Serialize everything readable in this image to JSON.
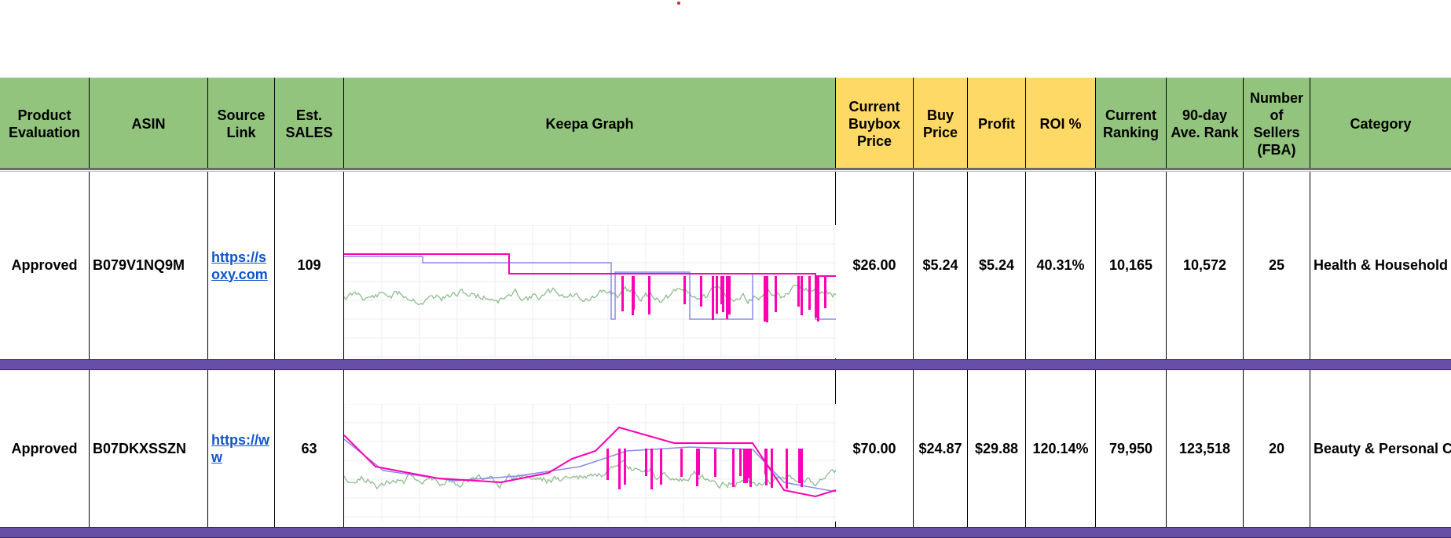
{
  "columns": {
    "product_evaluation": "Product Evaluation",
    "asin": "ASIN",
    "source_link": "Source Link",
    "est_sales": "Est. SALES",
    "keepa_graph": "Keepa Graph",
    "current_buybox_price": "Current Buybox Price",
    "buy_price": "Buy Price",
    "profit": "Profit",
    "roi": "ROI %",
    "current_ranking": "Current Ranking",
    "avg_rank_90": "90-day Ave. Rank",
    "num_sellers": "Number of Sellers (FBA)",
    "category": "Category"
  },
  "rows": [
    {
      "evaluation": "Approved",
      "asin": "B079V1NQ9M",
      "source_link": "https://soxy.com",
      "est_sales": "109",
      "buybox": "$26.00",
      "buy_price": "$5.24",
      "profit": "$5.24",
      "roi": "40.31%",
      "current_ranking": "10,165",
      "avg_rank": "10,572",
      "sellers": "25",
      "category": "Health & Household"
    },
    {
      "evaluation": "Approved",
      "asin": "B07DKXSSZN",
      "source_link": "https://ww",
      "est_sales": "63",
      "buybox": "$70.00",
      "buy_price": "$24.87",
      "profit": "$29.88",
      "roi": "120.14%",
      "current_ranking": "79,950",
      "avg_rank": "123,518",
      "sellers": "20",
      "category": "Beauty & Personal C"
    }
  ],
  "colors": {
    "header_green": "#93c47d",
    "header_yellow": "#ffd966",
    "row_separator": "#674ea7",
    "link": "#1155cc",
    "keepa_amazon": "#ff00b4",
    "keepa_new": "#8888ee",
    "keepa_rank": "#8fbc8f"
  }
}
